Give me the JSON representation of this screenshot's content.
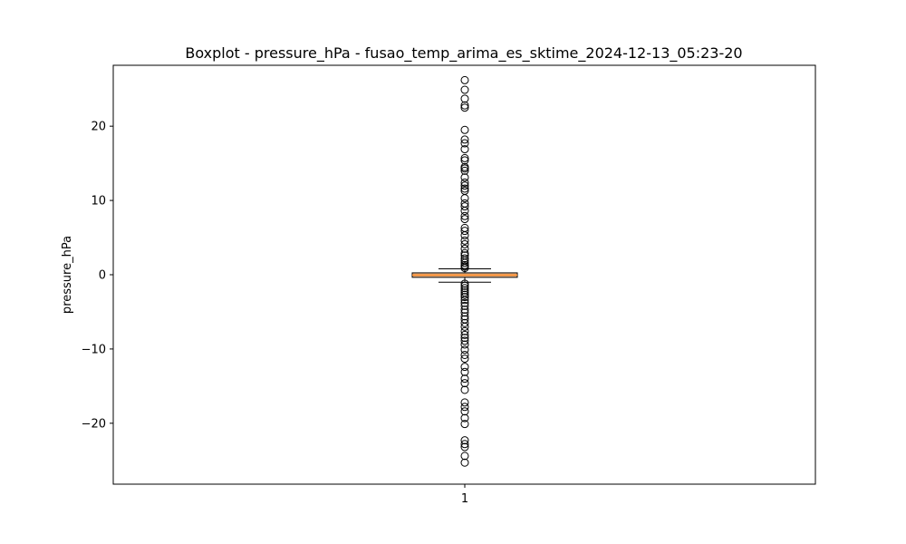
{
  "chart_data": {
    "type": "boxplot",
    "title": "Boxplot - pressure_hPa - fusao_temp_arima_es_sktime_2024-12-13_05:23-20",
    "xlabel": "",
    "ylabel": "pressure_hPa",
    "categories": [
      "1"
    ],
    "ylim": [
      -28.2,
      28.2
    ],
    "yticks": [
      -20,
      -10,
      0,
      10,
      20
    ],
    "ytick_labels": [
      "−20",
      "−10",
      "0",
      "10",
      "20"
    ],
    "box": {
      "q1": -0.35,
      "median": -0.05,
      "q3": 0.25,
      "whisker_low": -1.0,
      "whisker_high": 0.8
    },
    "outliers": [
      26.2,
      24.9,
      23.7,
      22.8,
      22.5,
      19.5,
      18.2,
      17.7,
      16.9,
      15.7,
      15.4,
      14.5,
      14.3,
      14.0,
      13.1,
      12.4,
      12.0,
      11.6,
      11.3,
      10.3,
      9.6,
      9.2,
      8.6,
      7.9,
      7.5,
      6.3,
      5.9,
      5.3,
      4.6,
      4.1,
      3.5,
      2.9,
      2.6,
      2.2,
      1.9,
      1.6,
      1.3,
      1.1,
      0.9,
      -1.2,
      -1.5,
      -1.8,
      -2.1,
      -2.4,
      -2.7,
      -3.0,
      -3.4,
      -3.8,
      -4.2,
      -4.7,
      -5.1,
      -5.6,
      -6.0,
      -6.5,
      -7.0,
      -7.6,
      -8.1,
      -8.5,
      -8.9,
      -9.4,
      -10.1,
      -10.8,
      -11.3,
      -12.4,
      -13.1,
      -14.0,
      -14.6,
      -15.5,
      -17.2,
      -17.8,
      -18.4,
      -19.3,
      -20.1,
      -22.3,
      -22.8,
      -23.2,
      -24.4,
      -25.3
    ],
    "colors": {
      "box_fill": "#f2bb8c",
      "box_edge": "#000000",
      "median": "#f58220",
      "whisker": "#000000"
    }
  }
}
